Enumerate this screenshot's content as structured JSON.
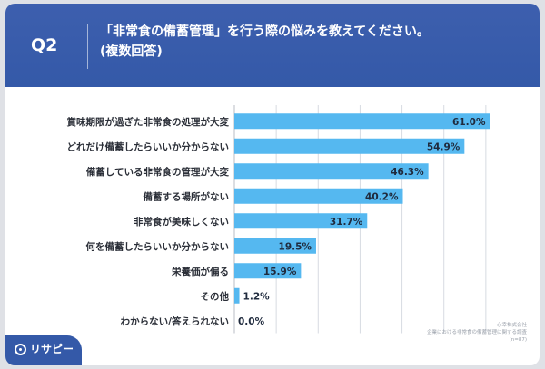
{
  "header": {
    "question_number": "Q2",
    "title_line1": "「非常食の備蓄管理」を行う際の悩みを教えてください。",
    "title_line2": "(複数回答)"
  },
  "chart_data": {
    "type": "bar",
    "orientation": "horizontal",
    "categories": [
      "賞味期限が過ぎた非常食の処理が大変",
      "どれだけ備蓄したらいいか分からない",
      "備蓄している非常食の管理が大変",
      "備蓄する場所がない",
      "非常食が美味しくない",
      "何を備蓄したらいいか分からない",
      "栄養価が偏る",
      "その他",
      "わからない/答えられない"
    ],
    "values": [
      61.0,
      54.9,
      46.3,
      40.2,
      31.7,
      19.5,
      15.9,
      1.2,
      0.0
    ],
    "value_labels": [
      "61.0%",
      "54.9%",
      "46.3%",
      "40.2%",
      "31.7%",
      "19.5%",
      "15.9%",
      "1.2%",
      "0.0%"
    ],
    "xlim": [
      0,
      70
    ],
    "grid": true,
    "bar_color": "#55b8f0"
  },
  "footer": {
    "logo_text": "リサピー",
    "source_line1": "企業における非常食の備蓄管理に関する調査",
    "source_line2": "心幸株式会社",
    "source_line3": "(n=87)"
  }
}
